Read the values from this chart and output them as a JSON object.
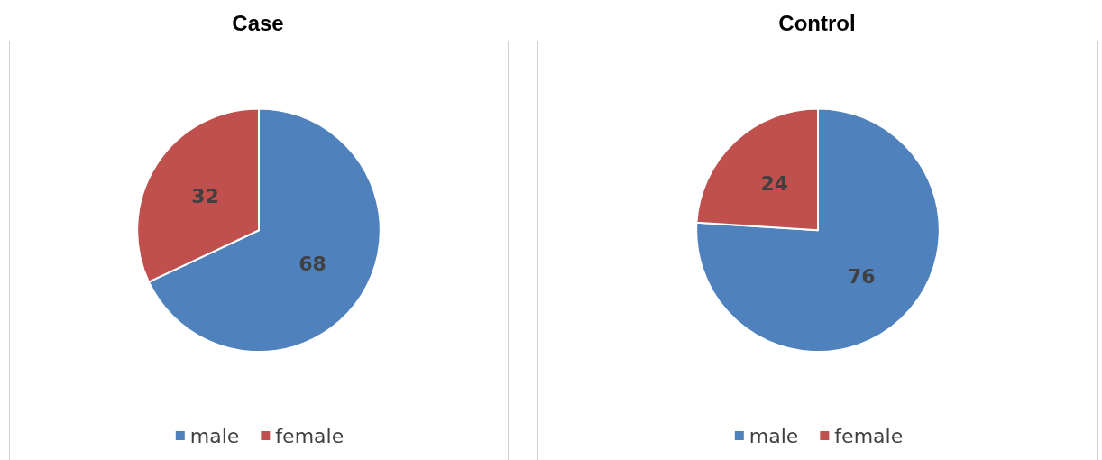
{
  "chart_data": [
    {
      "type": "pie",
      "title": "Case",
      "categories": [
        "male",
        "female"
      ],
      "values": [
        68,
        32
      ],
      "colors": [
        "#4f81bd",
        "#c0504d"
      ],
      "data_labels": true,
      "legend": "bottom"
    },
    {
      "type": "pie",
      "title": "Control",
      "categories": [
        "male",
        "female"
      ],
      "values": [
        76,
        24
      ],
      "colors": [
        "#4f81bd",
        "#c0504d"
      ],
      "data_labels": true,
      "legend": "bottom"
    }
  ]
}
